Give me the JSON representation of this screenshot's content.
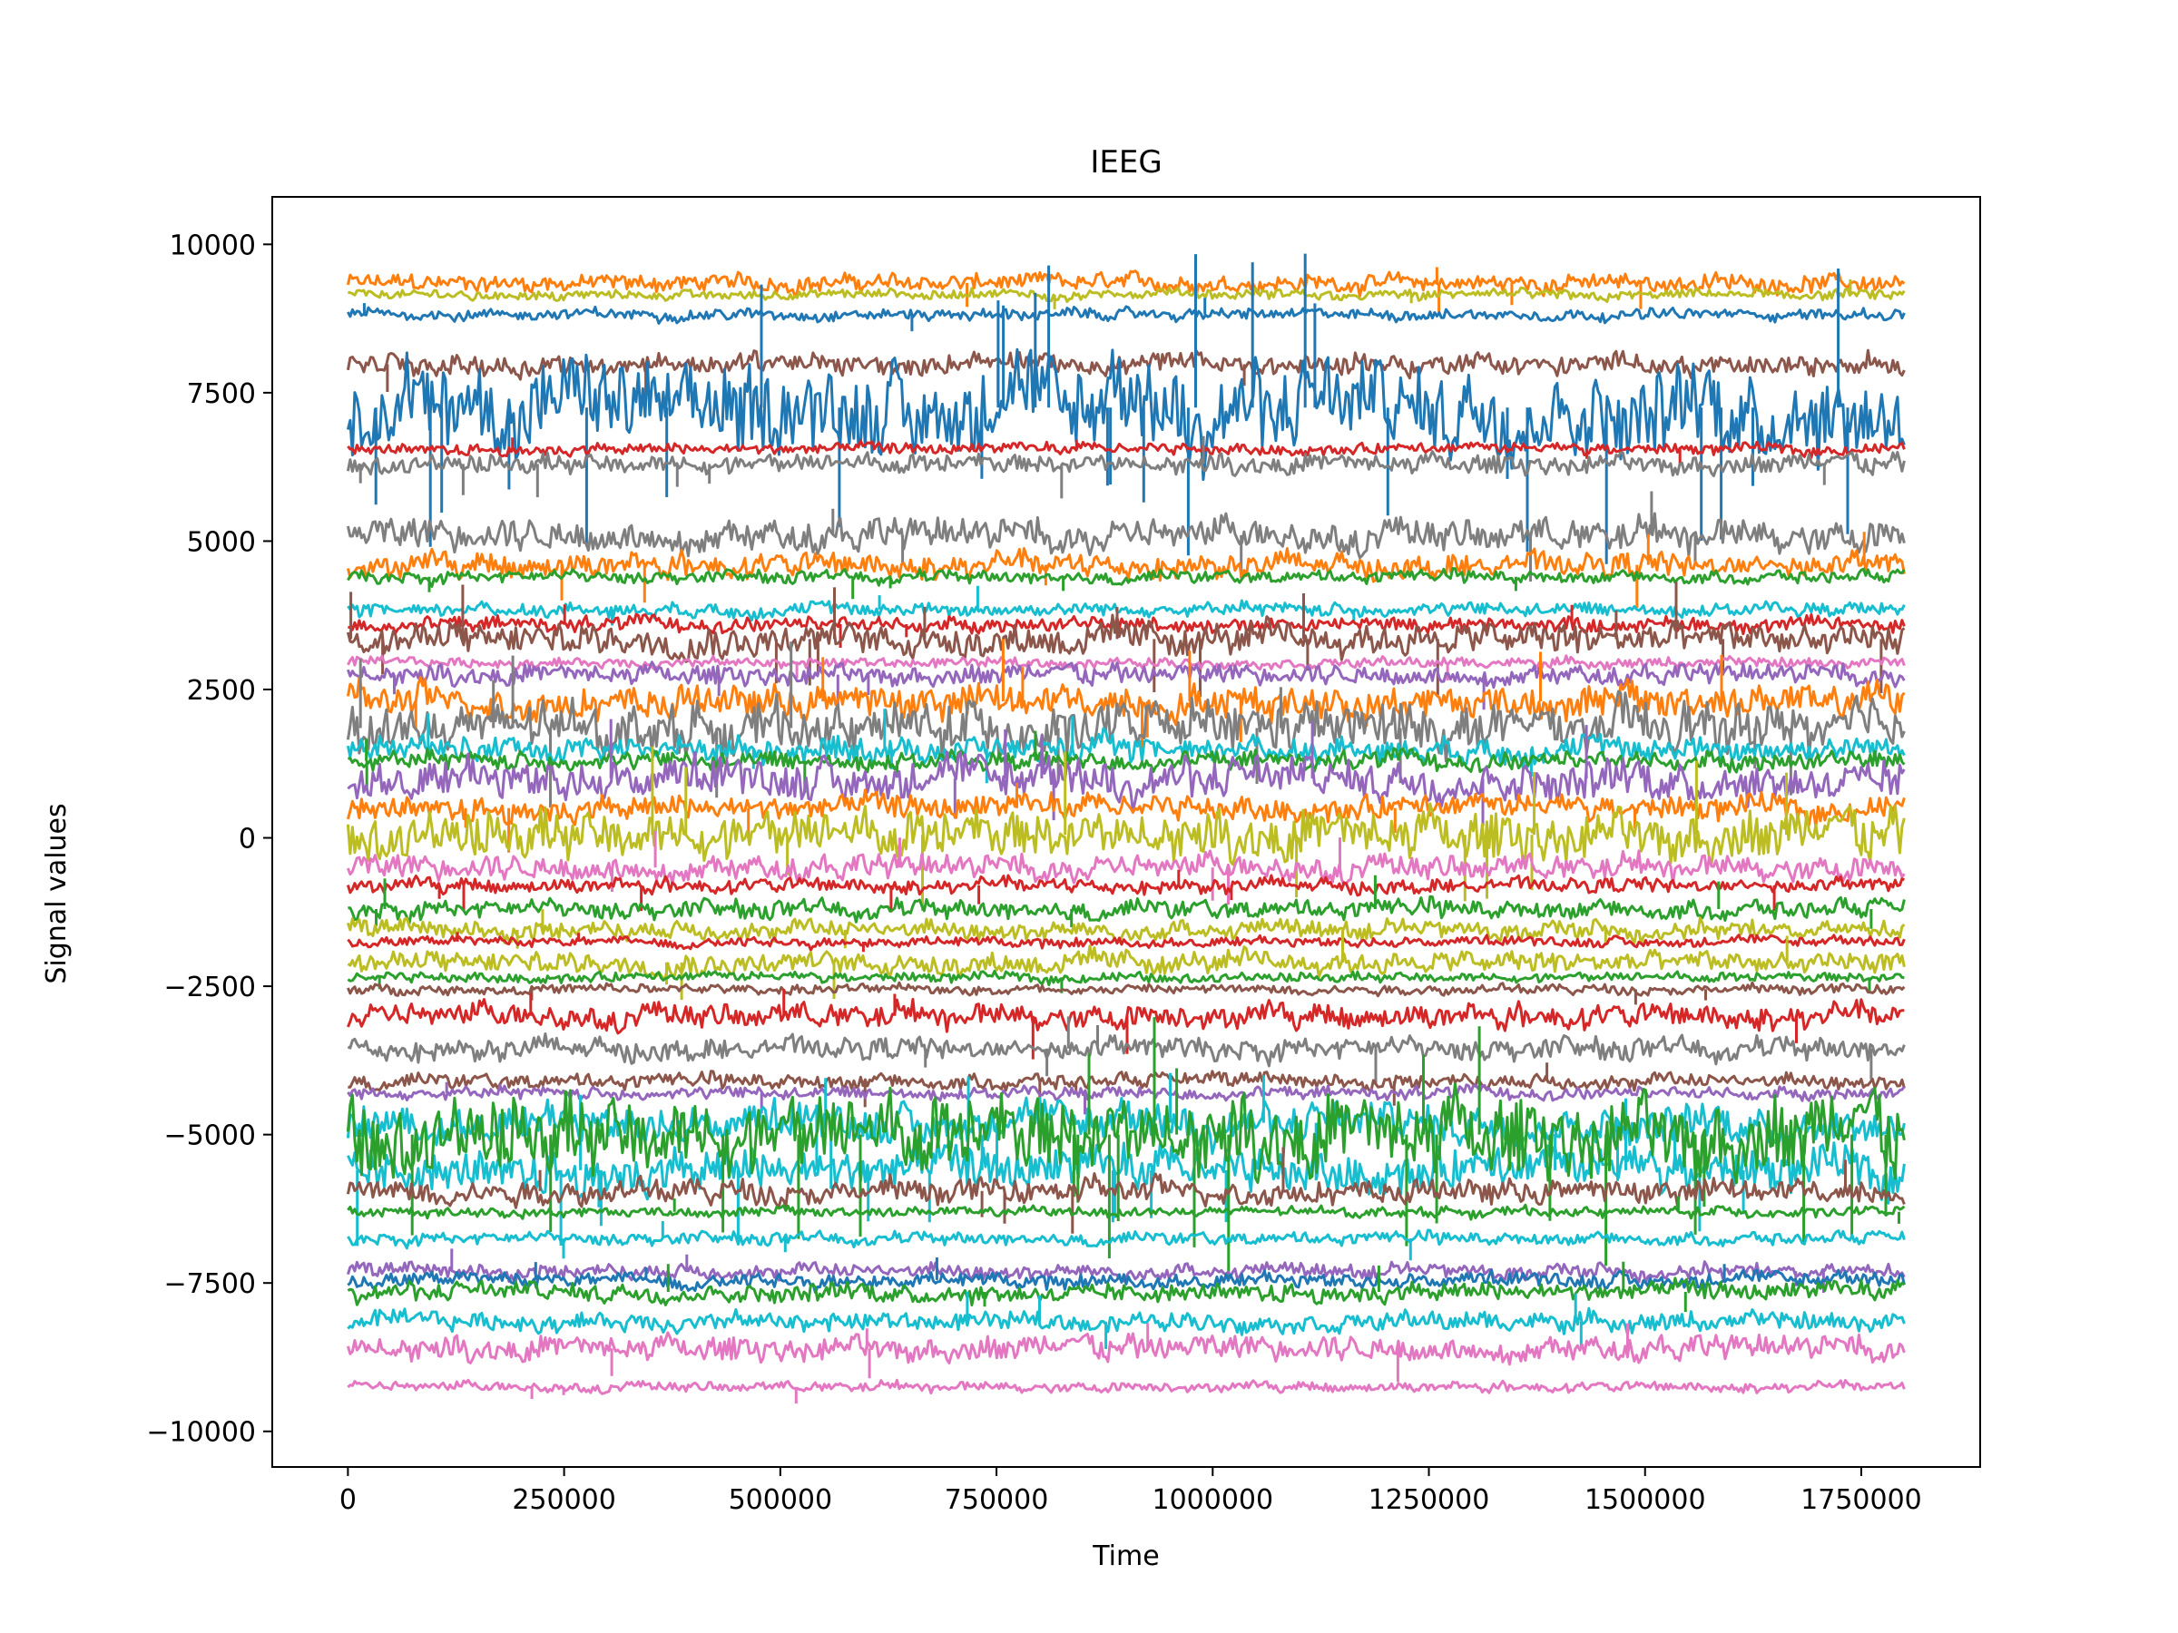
{
  "chart_data": {
    "type": "line",
    "title": "IEEG",
    "xlabel": "Time",
    "ylabel": "Signal values",
    "xlim": [
      -87500,
      1887500
    ],
    "ylim": [
      -10600,
      10800
    ],
    "x_range": [
      0,
      1800000
    ],
    "xticks": [
      0,
      250000,
      500000,
      750000,
      1000000,
      1250000,
      1500000,
      1750000
    ],
    "xtick_labels": [
      "0",
      "250000",
      "500000",
      "750000",
      "1000000",
      "1250000",
      "1500000",
      "1750000"
    ],
    "yticks": [
      -10000,
      -7500,
      -5000,
      -2500,
      0,
      2500,
      5000,
      7500,
      10000
    ],
    "ytick_labels": [
      "−10000",
      "−7500",
      "−5000",
      "−2500",
      "0",
      "2500",
      "5000",
      "7500",
      "10000"
    ],
    "grid": false,
    "legend": "none",
    "series": [
      {
        "color": "#ff7f0e",
        "offset": 9350,
        "amp": 140,
        "spikes": 5
      },
      {
        "color": "#bcbd22",
        "offset": 9150,
        "amp": 80,
        "spikes": 3
      },
      {
        "color": "#1f77b4",
        "offset": 8820,
        "amp": 90,
        "spikes": 3
      },
      {
        "color": "#8c564b",
        "offset": 7980,
        "amp": 170,
        "spikes": 4
      },
      {
        "color": "#1f77b4",
        "offset": 7250,
        "amp": 700,
        "spikes": 30
      },
      {
        "color": "#d62728",
        "offset": 6550,
        "amp": 90,
        "spikes": 4
      },
      {
        "color": "#7f7f7f",
        "offset": 6300,
        "amp": 160,
        "spikes": 8
      },
      {
        "color": "#7f7f7f",
        "offset": 5100,
        "amp": 260,
        "spikes": 6
      },
      {
        "color": "#ff7f0e",
        "offset": 4600,
        "amp": 200,
        "spikes": 6
      },
      {
        "color": "#2ca02c",
        "offset": 4400,
        "amp": 100,
        "spikes": 5
      },
      {
        "color": "#17becf",
        "offset": 3850,
        "amp": 110,
        "spikes": 4
      },
      {
        "color": "#d62728",
        "offset": 3600,
        "amp": 120,
        "spikes": 4
      },
      {
        "color": "#8c564b",
        "offset": 3350,
        "amp": 260,
        "spikes": 18
      },
      {
        "color": "#e377c2",
        "offset": 2950,
        "amp": 80,
        "spikes": 3
      },
      {
        "color": "#9467bd",
        "offset": 2750,
        "amp": 160,
        "spikes": 5
      },
      {
        "color": "#ff7f0e",
        "offset": 2300,
        "amp": 280,
        "spikes": 10
      },
      {
        "color": "#7f7f7f",
        "offset": 1850,
        "amp": 400,
        "spikes": 12
      },
      {
        "color": "#17becf",
        "offset": 1500,
        "amp": 200,
        "spikes": 8
      },
      {
        "color": "#2ca02c",
        "offset": 1300,
        "amp": 150,
        "spikes": 5
      },
      {
        "color": "#9467bd",
        "offset": 1000,
        "amp": 320,
        "spikes": 8
      },
      {
        "color": "#ff7f0e",
        "offset": 500,
        "amp": 200,
        "spikes": 6
      },
      {
        "color": "#bcbd22",
        "offset": 50,
        "amp": 400,
        "spikes": 12
      },
      {
        "color": "#e377c2",
        "offset": -500,
        "amp": 200,
        "spikes": 6
      },
      {
        "color": "#d62728",
        "offset": -800,
        "amp": 120,
        "spikes": 8
      },
      {
        "color": "#2ca02c",
        "offset": -1200,
        "amp": 150,
        "spikes": 6
      },
      {
        "color": "#bcbd22",
        "offset": -1550,
        "amp": 150,
        "spikes": 4
      },
      {
        "color": "#d62728",
        "offset": -1750,
        "amp": 80,
        "spikes": 3
      },
      {
        "color": "#bcbd22",
        "offset": -2100,
        "amp": 180,
        "spikes": 5
      },
      {
        "color": "#2ca02c",
        "offset": -2350,
        "amp": 80,
        "spikes": 3
      },
      {
        "color": "#8c564b",
        "offset": -2550,
        "amp": 80,
        "spikes": 3
      },
      {
        "color": "#d62728",
        "offset": -3000,
        "amp": 200,
        "spikes": 6
      },
      {
        "color": "#7f7f7f",
        "offset": -3550,
        "amp": 180,
        "spikes": 6
      },
      {
        "color": "#8c564b",
        "offset": -4100,
        "amp": 120,
        "spikes": 5
      },
      {
        "color": "#9467bd",
        "offset": -4300,
        "amp": 100,
        "spikes": 3
      },
      {
        "color": "#17becf",
        "offset": -4800,
        "amp": 300,
        "spikes": 10
      },
      {
        "color": "#17becf",
        "offset": -5600,
        "amp": 350,
        "spikes": 20
      },
      {
        "color": "#2ca02c",
        "offset": -5000,
        "amp": 650,
        "spikes": 25
      },
      {
        "color": "#8c564b",
        "offset": -5950,
        "amp": 200,
        "spikes": 6
      },
      {
        "color": "#2ca02c",
        "offset": -6300,
        "amp": 80,
        "spikes": 3
      },
      {
        "color": "#17becf",
        "offset": -6750,
        "amp": 100,
        "spikes": 4
      },
      {
        "color": "#9467bd",
        "offset": -7300,
        "amp": 120,
        "spikes": 4
      },
      {
        "color": "#1f77b4",
        "offset": -7450,
        "amp": 120,
        "spikes": 4
      },
      {
        "color": "#2ca02c",
        "offset": -7650,
        "amp": 150,
        "spikes": 5
      },
      {
        "color": "#17becf",
        "offset": -8150,
        "amp": 150,
        "spikes": 5
      },
      {
        "color": "#e377c2",
        "offset": -8600,
        "amp": 200,
        "spikes": 6
      },
      {
        "color": "#e377c2",
        "offset": -9250,
        "amp": 80,
        "spikes": 3
      }
    ]
  }
}
